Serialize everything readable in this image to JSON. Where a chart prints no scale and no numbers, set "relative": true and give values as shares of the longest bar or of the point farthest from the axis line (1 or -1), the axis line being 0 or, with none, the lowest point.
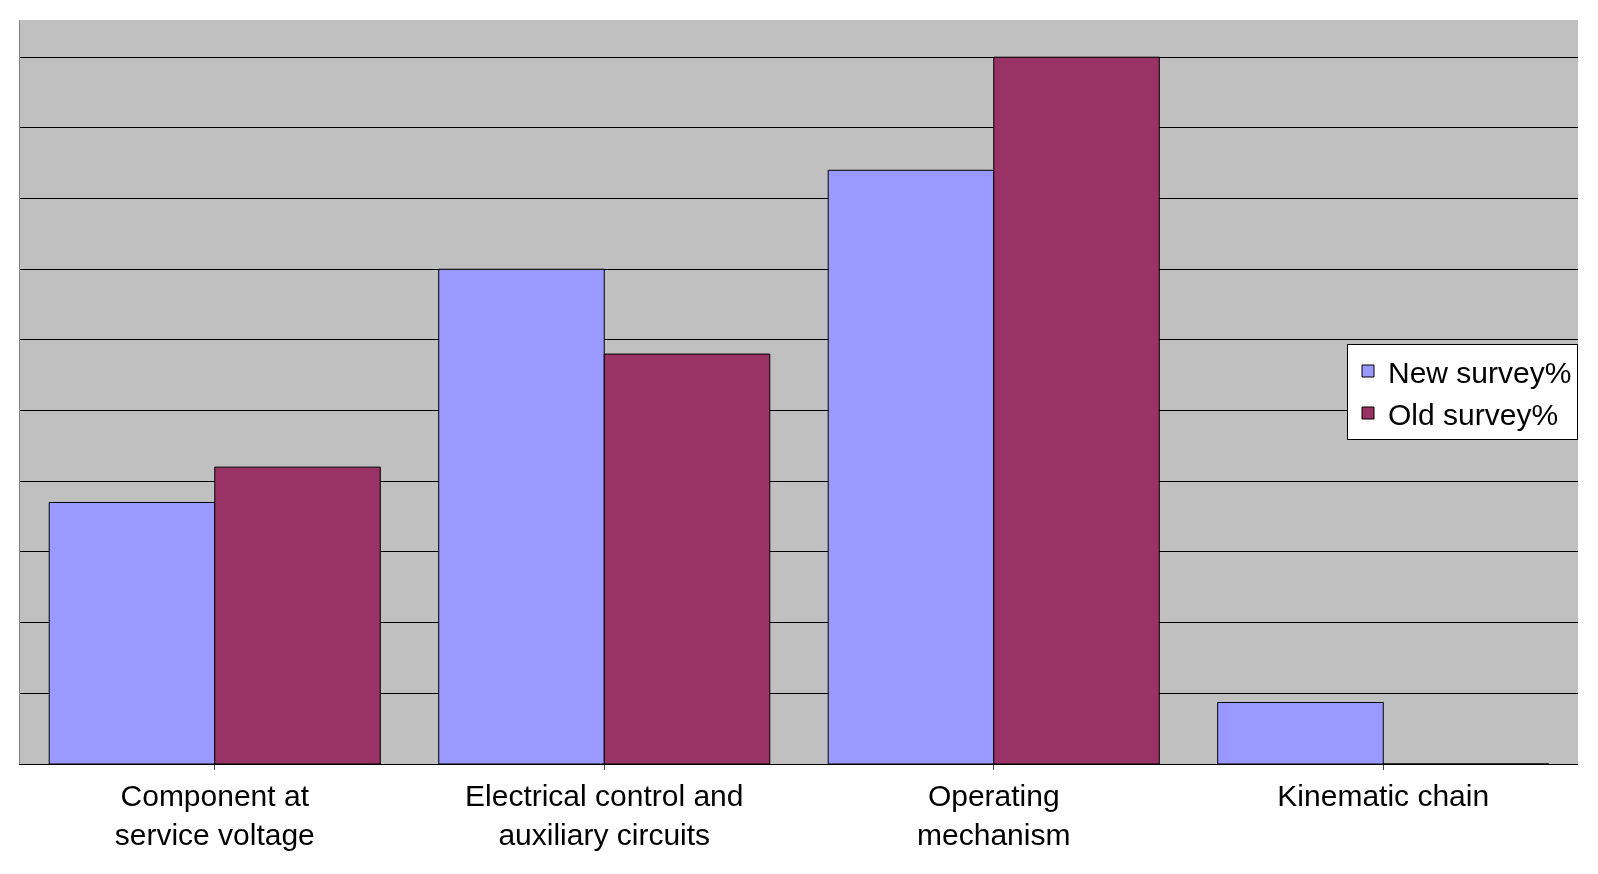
{
  "chart_data": {
    "type": "bar",
    "relative": true,
    "grid": "y",
    "legend": "right",
    "categories": [
      "Component at service voltage",
      "Electrical control and auxiliary circuits",
      "Operating mechanism",
      "Kinematic chain"
    ],
    "series": [
      {
        "name": "New survey%",
        "color": "#9999ff",
        "values": [
          0.37,
          0.7,
          0.84,
          0.087
        ]
      },
      {
        "name": "Old survey%",
        "color": "#993366",
        "values": [
          0.42,
          0.58,
          1.0,
          0
        ]
      }
    ]
  }
}
